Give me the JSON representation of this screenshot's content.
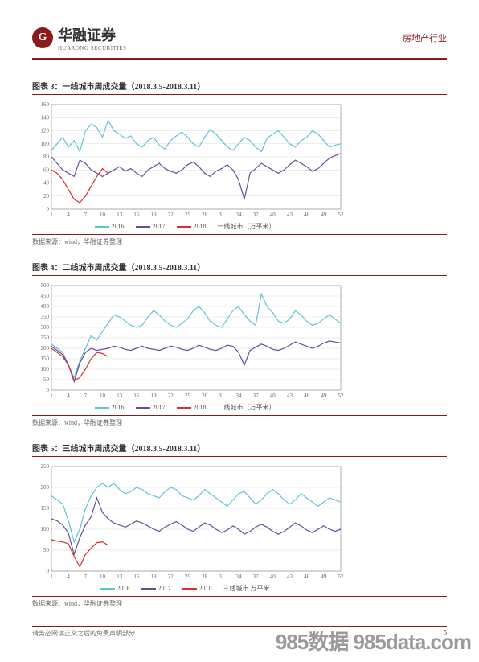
{
  "header": {
    "logo_glyph": "G",
    "company_cn": "华融证券",
    "company_en": "HUARONG SECURITIES",
    "industry": "房地产行业"
  },
  "footer": {
    "disclaimer": "请务必阅读正文之后的免责声明部分",
    "page": "5"
  },
  "watermark": "985数据 985data.com",
  "charts": [
    {
      "title": "图表 3：一线城市周成交量（2018.3.5-2018.3.11）",
      "source": "数据来源：wind，华融证券整理",
      "type": "line",
      "height": 150,
      "ylim": [
        0,
        160
      ],
      "ytick_step": 20,
      "xlim": [
        1,
        52
      ],
      "xticks": [
        1,
        4,
        7,
        10,
        13,
        16,
        19,
        22,
        25,
        28,
        31,
        34,
        37,
        40,
        43,
        46,
        49,
        52
      ],
      "grid_color": "#d9d9d9",
      "axis_color": "#808080",
      "label_fontsize": 7,
      "series": [
        {
          "name": "2016",
          "color": "#5bc5d9",
          "width": 1.2,
          "data": [
            90,
            100,
            110,
            95,
            105,
            88,
            120,
            130,
            125,
            110,
            136,
            120,
            115,
            108,
            112,
            100,
            95,
            105,
            110,
            98,
            92,
            105,
            112,
            118,
            110,
            100,
            95,
            110,
            122,
            115,
            105,
            95,
            90,
            100,
            110,
            105,
            95,
            88,
            108,
            115,
            120,
            110,
            100,
            95,
            105,
            110,
            120,
            115,
            105,
            95,
            98,
            100
          ]
        },
        {
          "name": "2017",
          "color": "#6b4c9a",
          "width": 1.2,
          "data": [
            80,
            70,
            60,
            55,
            50,
            75,
            70,
            60,
            55,
            50,
            55,
            60,
            65,
            58,
            62,
            55,
            50,
            60,
            65,
            70,
            62,
            58,
            55,
            60,
            68,
            72,
            65,
            55,
            50,
            58,
            62,
            68,
            60,
            45,
            15,
            55,
            62,
            70,
            65,
            60,
            55,
            60,
            68,
            75,
            70,
            65,
            58,
            62,
            70,
            78,
            82,
            85
          ]
        },
        {
          "name": "2018",
          "color": "#d62f2f",
          "width": 1.2,
          "data": [
            60,
            55,
            45,
            30,
            15,
            10,
            20,
            35,
            50,
            62,
            55
          ]
        }
      ],
      "legend_extra": "一线城市（万平米）"
    },
    {
      "title": "图表 4：二线城市周成交量（2018.3.5-2018.3.11）",
      "source": "数据来源：wind，华融证券整理",
      "type": "line",
      "height": 150,
      "ylim": [
        0,
        500
      ],
      "ytick_step": 50,
      "xlim": [
        1,
        52
      ],
      "xticks": [
        1,
        4,
        7,
        10,
        13,
        16,
        19,
        22,
        25,
        28,
        31,
        34,
        37,
        40,
        43,
        46,
        49,
        52
      ],
      "grid_color": "#d9d9d9",
      "axis_color": "#808080",
      "label_fontsize": 7,
      "series": [
        {
          "name": "2016",
          "color": "#5bc5d9",
          "width": 1.2,
          "data": [
            220,
            200,
            180,
            120,
            60,
            140,
            200,
            260,
            240,
            280,
            320,
            360,
            350,
            330,
            310,
            300,
            310,
            350,
            380,
            360,
            330,
            310,
            300,
            320,
            340,
            380,
            400,
            370,
            330,
            310,
            300,
            340,
            380,
            400,
            360,
            330,
            310,
            460,
            400,
            370,
            330,
            320,
            340,
            380,
            360,
            330,
            310,
            320,
            340,
            360,
            340,
            320
          ]
        },
        {
          "name": "2017",
          "color": "#6b4c9a",
          "width": 1.2,
          "data": [
            210,
            190,
            170,
            120,
            40,
            130,
            180,
            200,
            190,
            195,
            200,
            210,
            205,
            195,
            190,
            200,
            210,
            200,
            195,
            190,
            200,
            210,
            205,
            195,
            190,
            200,
            215,
            205,
            195,
            190,
            200,
            215,
            210,
            180,
            120,
            190,
            205,
            220,
            210,
            195,
            190,
            200,
            215,
            230,
            220,
            210,
            200,
            210,
            225,
            235,
            230,
            225
          ]
        },
        {
          "name": "2018",
          "color": "#d62f2f",
          "width": 1.2,
          "data": [
            200,
            180,
            160,
            120,
            45,
            60,
            100,
            150,
            180,
            175,
            160
          ]
        }
      ],
      "legend_extra": "二线城市（万平米）"
    },
    {
      "title": "图表 5：三线城市周成交量（2018.3.5-2018.3.11）",
      "source": "数据来源：wind，华融证券整理",
      "type": "line",
      "height": 150,
      "ylim": [
        0,
        250
      ],
      "ytick_step": 50,
      "xlim": [
        1,
        52
      ],
      "xticks": [
        1,
        4,
        7,
        10,
        13,
        16,
        19,
        22,
        25,
        28,
        31,
        34,
        37,
        40,
        43,
        46,
        49,
        52
      ],
      "grid_color": "#d9d9d9",
      "axis_color": "#808080",
      "label_fontsize": 7,
      "series": [
        {
          "name": "2016",
          "color": "#5bc5d9",
          "width": 1.2,
          "data": [
            180,
            170,
            160,
            120,
            70,
            100,
            150,
            180,
            200,
            210,
            200,
            210,
            195,
            185,
            190,
            200,
            195,
            185,
            180,
            175,
            190,
            200,
            195,
            180,
            175,
            170,
            180,
            195,
            185,
            175,
            165,
            155,
            170,
            185,
            190,
            175,
            160,
            170,
            185,
            195,
            185,
            170,
            160,
            170,
            185,
            175,
            165,
            155,
            165,
            175,
            170,
            165
          ]
        },
        {
          "name": "2017",
          "color": "#6b4c9a",
          "width": 1.2,
          "data": [
            125,
            120,
            110,
            90,
            40,
            80,
            110,
            130,
            175,
            140,
            125,
            115,
            110,
            105,
            112,
            120,
            115,
            108,
            100,
            95,
            105,
            112,
            118,
            110,
            100,
            95,
            105,
            115,
            110,
            100,
            92,
            98,
            108,
            100,
            88,
            95,
            105,
            112,
            105,
            95,
            88,
            95,
            105,
            115,
            108,
            98,
            92,
            100,
            108,
            100,
            95,
            100
          ]
        },
        {
          "name": "2018",
          "color": "#d62f2f",
          "width": 1.2,
          "data": [
            75,
            72,
            70,
            65,
            35,
            10,
            40,
            55,
            68,
            70,
            62
          ]
        }
      ],
      "legend_extra": "三线城市 万平米"
    }
  ]
}
